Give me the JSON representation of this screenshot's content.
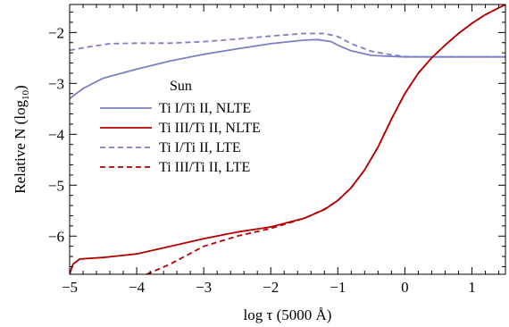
{
  "chart_data": {
    "type": "line",
    "title": "",
    "xlabel": "log τ (5000 Å)",
    "ylabel_main": "Relative N (log",
    "ylabel_sub": "10",
    "ylabel_close": ")",
    "xlim": [
      -5,
      1.5
    ],
    "ylim": [
      -6.75,
      -1.45
    ],
    "xticks": [
      -5,
      -4,
      -3,
      -2,
      -1,
      0,
      1
    ],
    "xtick_labels": [
      "−5",
      "−4",
      "−3",
      "−2",
      "−1",
      "0",
      "1"
    ],
    "yticks": [
      -6,
      -5,
      -4,
      -3,
      -2
    ],
    "ytick_labels": [
      "−6",
      "−5",
      "−4",
      "−3",
      "−2"
    ],
    "grid": false,
    "legend": {
      "placement": "center-left",
      "title": "Sun"
    },
    "series": [
      {
        "name": "Ti I/Ti II, NLTE",
        "color": "#7b7fc4",
        "dash": "solid",
        "x": [
          -5,
          -4.8,
          -4.5,
          -4,
          -3.5,
          -3,
          -2.5,
          -2,
          -1.5,
          -1.3,
          -1.1,
          -1,
          -0.8,
          -0.5,
          -0.2,
          0,
          0.3,
          0.6,
          1,
          1.5
        ],
        "y": [
          -3.3,
          -3.1,
          -2.9,
          -2.72,
          -2.56,
          -2.43,
          -2.32,
          -2.22,
          -2.15,
          -2.14,
          -2.18,
          -2.25,
          -2.36,
          -2.45,
          -2.47,
          -2.48,
          -2.48,
          -2.48,
          -2.48,
          -2.48
        ]
      },
      {
        "name": "Ti III/Ti II, NLTE",
        "color": "#b20000",
        "dash": "solid",
        "x": [
          -5,
          -4.95,
          -4.85,
          -4.5,
          -4,
          -3.5,
          -3,
          -2.5,
          -2,
          -1.5,
          -1.2,
          -1,
          -0.8,
          -0.6,
          -0.4,
          -0.2,
          0,
          0.2,
          0.4,
          0.6,
          0.8,
          1,
          1.2,
          1.5
        ],
        "y": [
          -6.75,
          -6.55,
          -6.45,
          -6.42,
          -6.35,
          -6.2,
          -6.05,
          -5.92,
          -5.82,
          -5.65,
          -5.48,
          -5.3,
          -5.05,
          -4.7,
          -4.25,
          -3.7,
          -3.2,
          -2.8,
          -2.5,
          -2.25,
          -2.02,
          -1.82,
          -1.65,
          -1.45
        ]
      },
      {
        "name": "Ti I/Ti II, LTE",
        "color": "#7b7fc4",
        "dash": "dashed",
        "x": [
          -5,
          -4.7,
          -4.4,
          -4,
          -3.5,
          -3,
          -2.5,
          -2,
          -1.5,
          -1.2,
          -1,
          -0.8,
          -0.5,
          -0.2,
          0,
          0.3,
          0.6,
          1,
          1.5
        ],
        "y": [
          -2.35,
          -2.28,
          -2.22,
          -2.21,
          -2.21,
          -2.18,
          -2.13,
          -2.07,
          -2.02,
          -2.02,
          -2.08,
          -2.22,
          -2.37,
          -2.44,
          -2.47,
          -2.48,
          -2.48,
          -2.48,
          -2.48
        ]
      },
      {
        "name": "Ti III/Ti II, LTE",
        "color": "#b20000",
        "dash": "dashed",
        "x": [
          -3.85,
          -3.5,
          -3,
          -2.5,
          -2,
          -1.5,
          -1.2,
          -1,
          -0.8,
          -0.6,
          -0.4,
          -0.2,
          0,
          0.2,
          0.4,
          0.6,
          0.8,
          1,
          1.2,
          1.5
        ],
        "y": [
          -6.75,
          -6.55,
          -6.2,
          -6.0,
          -5.85,
          -5.65,
          -5.47,
          -5.3,
          -5.05,
          -4.7,
          -4.25,
          -3.7,
          -3.2,
          -2.8,
          -2.5,
          -2.25,
          -2.02,
          -1.82,
          -1.65,
          -1.45
        ]
      }
    ]
  }
}
